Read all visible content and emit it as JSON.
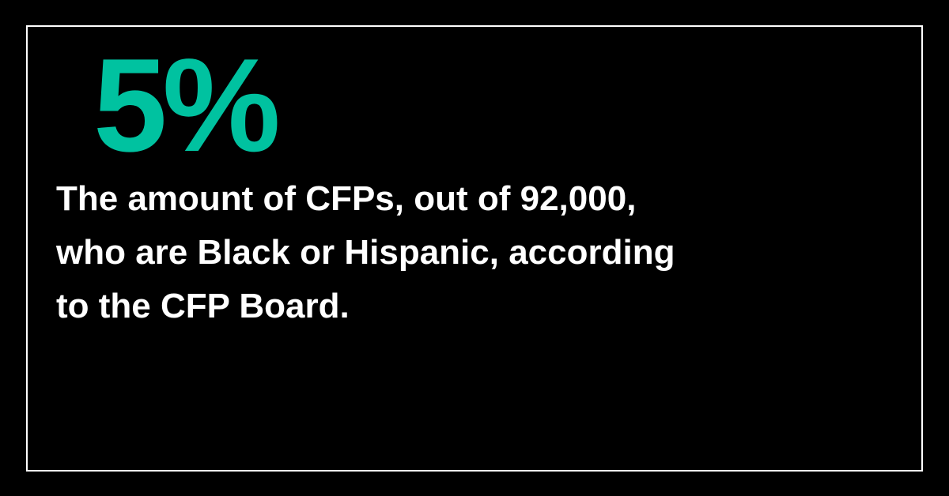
{
  "stat": {
    "value": "5%",
    "caption_lines": [
      "The amount of CFPs, out of 92,000,",
      "who are Black or Hispanic, according",
      "to the CFP Board."
    ]
  },
  "colors": {
    "background": "#000000",
    "frame": "#ffffff",
    "accent": "#00c2a0",
    "text": "#ffffff"
  }
}
